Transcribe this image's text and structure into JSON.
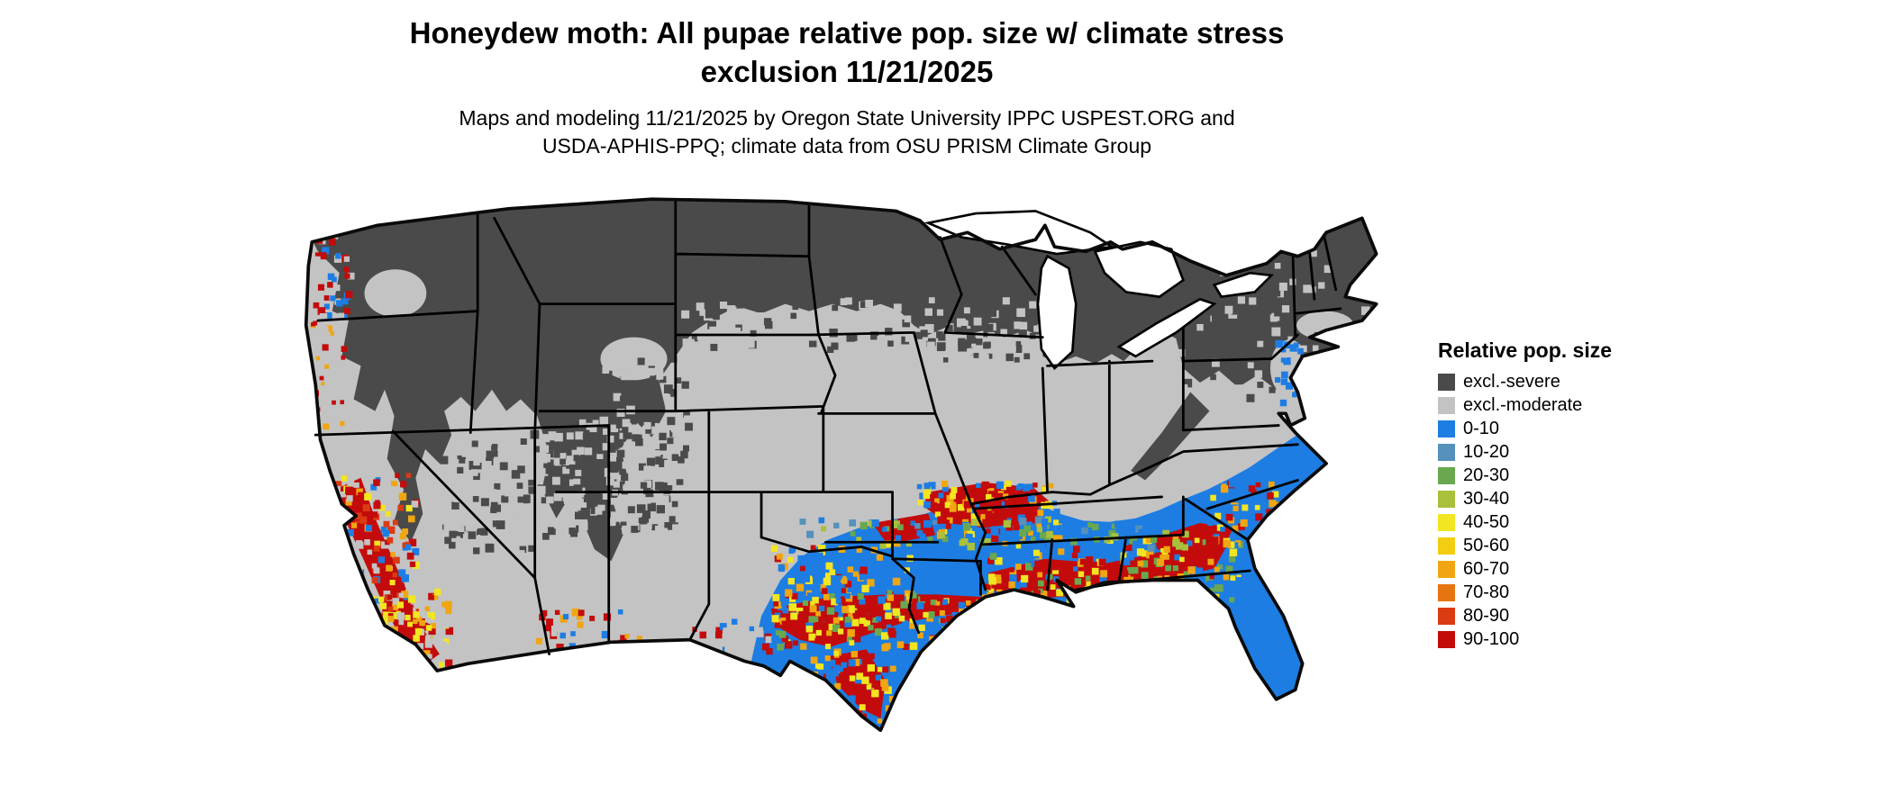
{
  "title": "Honeydew moth: All pupae relative pop. size w/ climate stress exclusion 11/21/2025",
  "subtitle": "Maps and modeling 11/21/2025 by Oregon State University IPPC USPEST.ORG and USDA-APHIS-PPQ; climate data from OSU PRISM Climate Group",
  "map": {
    "region": "Continental United States",
    "kind": "raster population-index map with state borders"
  },
  "legend": {
    "title": "Relative pop. size",
    "items": [
      {
        "label": "excl.-severe",
        "color": "#4a4a4a"
      },
      {
        "label": "excl.-moderate",
        "color": "#c3c3c3"
      },
      {
        "label": "0-10",
        "color": "#1d7de2"
      },
      {
        "label": "10-20",
        "color": "#5591bb"
      },
      {
        "label": "20-30",
        "color": "#69a84f"
      },
      {
        "label": "30-40",
        "color": "#a8c03c"
      },
      {
        "label": "40-50",
        "color": "#f2e522"
      },
      {
        "label": "50-60",
        "color": "#f2cd12"
      },
      {
        "label": "60-70",
        "color": "#efa612"
      },
      {
        "label": "70-80",
        "color": "#e67411"
      },
      {
        "label": "80-90",
        "color": "#da3b12"
      },
      {
        "label": "90-100",
        "color": "#c30b0b"
      }
    ]
  }
}
